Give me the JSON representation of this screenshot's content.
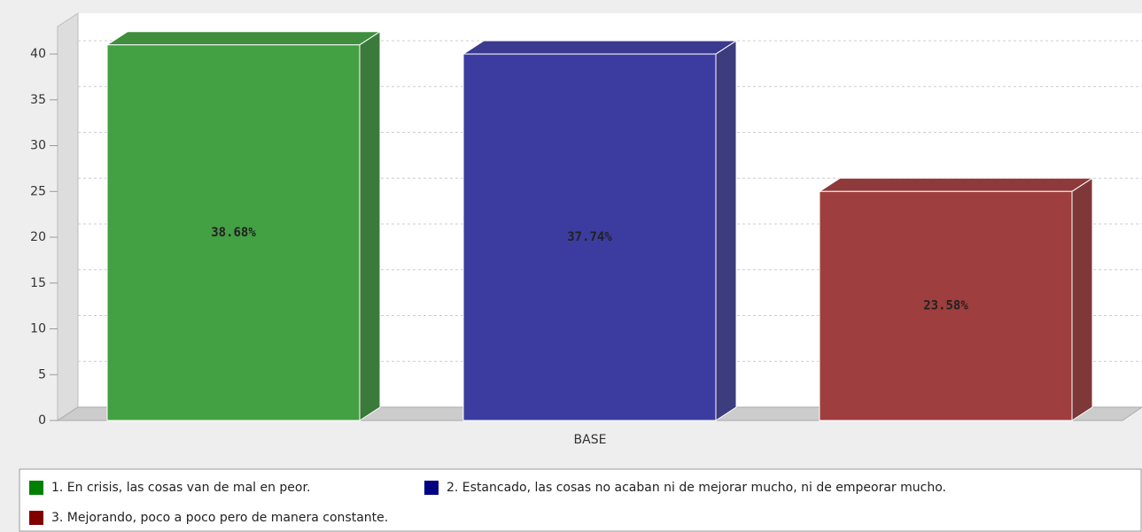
{
  "chart_data": {
    "type": "bar3d",
    "categories": [
      "BASE"
    ],
    "series": [
      {
        "name": "1. En crisis, las cosas van de mal en peor.",
        "color": "#008000",
        "values": [
          41
        ]
      },
      {
        "name": "2. Estancado, las cosas no acaban ni de mejorar mucho, ni de empeorar mucho.",
        "color": "#000080",
        "values": [
          40
        ]
      },
      {
        "name": "3. Mejorando, poco a poco pero de manera constante.",
        "color": "#800000",
        "values": [
          25
        ]
      }
    ],
    "bar_labels": [
      "38.68%",
      "37.74%",
      "23.58%"
    ],
    "ylim": [
      0,
      43
    ],
    "yticks": [
      0,
      5,
      10,
      15,
      20,
      25,
      30,
      35,
      40
    ],
    "grid": true
  }
}
